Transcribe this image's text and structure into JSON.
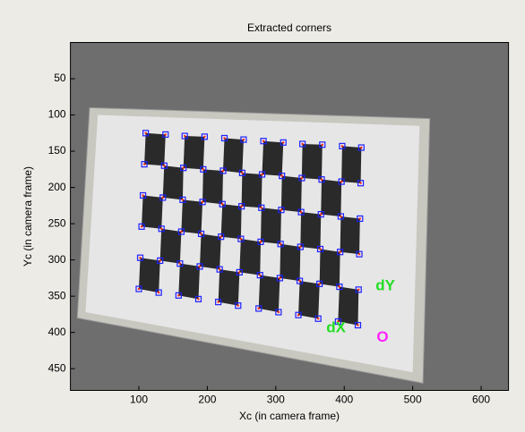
{
  "chart_data": {
    "type": "scatter",
    "title": "Extracted corners",
    "xlabel": "Xc (in camera frame)",
    "ylabel": "Yc (in camera frame)",
    "xlim": [
      0,
      640
    ],
    "ylim": [
      480,
      0
    ],
    "y_reversed": true,
    "xticks": [
      100,
      200,
      300,
      400,
      500,
      600
    ],
    "yticks": [
      50,
      100,
      150,
      200,
      250,
      300,
      350,
      400,
      450
    ],
    "color": "#2020ff",
    "marker_edge": "#ff2020",
    "x": [
      110,
      139,
      167,
      196,
      225,
      253,
      282,
      311,
      339,
      368,
      397,
      425,
      108,
      137,
      165,
      194,
      223,
      251,
      280,
      309,
      338,
      367,
      396,
      424,
      106,
      135,
      164,
      193,
      222,
      250,
      279,
      308,
      337,
      366,
      395,
      423,
      104,
      133,
      162,
      191,
      220,
      249,
      278,
      307,
      336,
      365,
      394,
      422,
      102,
      131,
      160,
      189,
      218,
      247,
      277,
      306,
      335,
      364,
      393,
      421,
      100,
      129,
      158,
      187,
      216,
      245,
      275,
      304,
      333,
      362,
      391,
      420
    ],
    "values": [
      125,
      127,
      129,
      130,
      132,
      134,
      136,
      138,
      140,
      141,
      143,
      145,
      168,
      170,
      173,
      175,
      177,
      180,
      182,
      184,
      187,
      189,
      192,
      194,
      211,
      214,
      217,
      220,
      223,
      226,
      228,
      231,
      234,
      237,
      240,
      243,
      254,
      257,
      261,
      264,
      268,
      271,
      275,
      278,
      282,
      285,
      289,
      292,
      297,
      301,
      305,
      309,
      313,
      317,
      321,
      325,
      329,
      333,
      337,
      341,
      340,
      345,
      349,
      354,
      358,
      363,
      367,
      372,
      376,
      381,
      385,
      390
    ],
    "annotations": [
      {
        "text": "dX",
        "x": 388,
        "y": 394,
        "color": "#22dd22"
      },
      {
        "text": "dY",
        "x": 460,
        "y": 336,
        "color": "#22dd22"
      },
      {
        "text": "O",
        "x": 456,
        "y": 407,
        "color": "#ff22ff"
      }
    ]
  }
}
